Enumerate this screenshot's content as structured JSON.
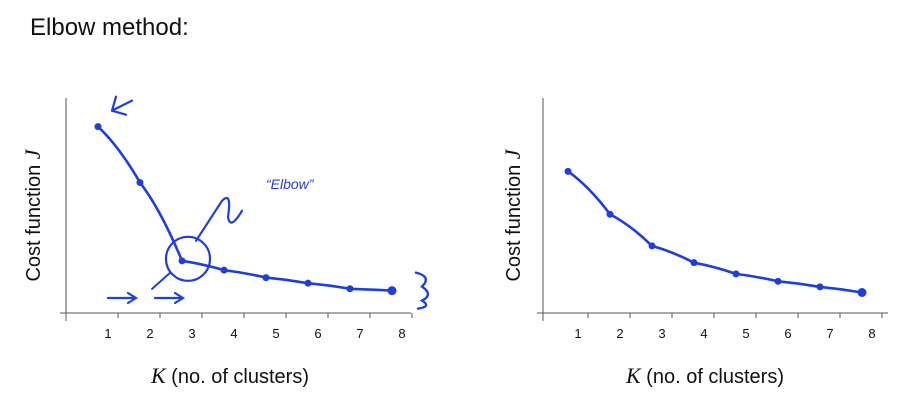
{
  "page": {
    "title": "Elbow method:"
  },
  "colors": {
    "ink": "#1f3fd9",
    "axis": "#555555",
    "text": "#111111"
  },
  "chart_data": [
    {
      "type": "line",
      "title": "",
      "xlabel_var": "K",
      "xlabel_rest": "(no. of clusters)",
      "ylabel_text": "Cost function ",
      "ylabel_var": "J",
      "x": [
        1,
        2,
        3,
        4,
        5,
        6,
        7,
        8
      ],
      "xticks": [
        "1",
        "2",
        "3",
        "4",
        "5",
        "6",
        "7",
        "8"
      ],
      "series": [
        {
          "values": [
            10.0,
            7.0,
            2.8,
            2.3,
            1.9,
            1.6,
            1.3,
            1.2
          ]
        }
      ],
      "ylim": [
        0,
        11
      ],
      "annotations": [
        {
          "text": "“Elbow”",
          "at_x": 3
        }
      ]
    },
    {
      "type": "line",
      "title": "",
      "xlabel_var": "K",
      "xlabel_rest": "(no. of clusters)",
      "ylabel_text": "Cost function ",
      "ylabel_var": "J",
      "x": [
        1,
        2,
        3,
        4,
        5,
        6,
        7,
        8
      ],
      "xticks": [
        "1",
        "2",
        "3",
        "4",
        "5",
        "6",
        "7",
        "8"
      ],
      "series": [
        {
          "values": [
            7.6,
            5.3,
            3.6,
            2.7,
            2.1,
            1.7,
            1.4,
            1.1
          ]
        }
      ],
      "ylim": [
        0,
        11
      ]
    }
  ]
}
